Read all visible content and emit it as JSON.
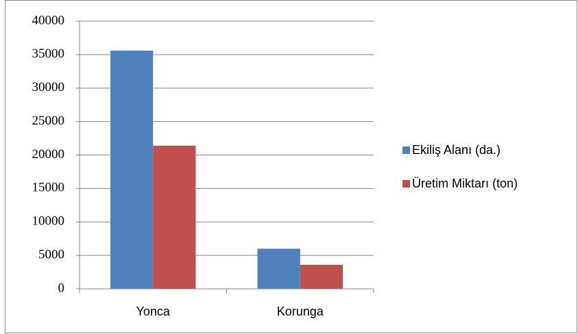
{
  "chart_data": {
    "type": "bar",
    "categories": [
      "Yonca",
      "Korunga"
    ],
    "series": [
      {
        "name": "Ekiliş Alanı (da.)",
        "color": "#4f81bd",
        "values": [
          35600,
          6000
        ]
      },
      {
        "name": "Üretim Miktarı (ton)",
        "color": "#c0504d",
        "values": [
          21400,
          3600
        ]
      }
    ],
    "ylim": [
      0,
      40000
    ],
    "yticks": [
      0,
      5000,
      10000,
      15000,
      20000,
      25000,
      30000,
      35000,
      40000
    ],
    "grid": true,
    "legend": "right"
  }
}
